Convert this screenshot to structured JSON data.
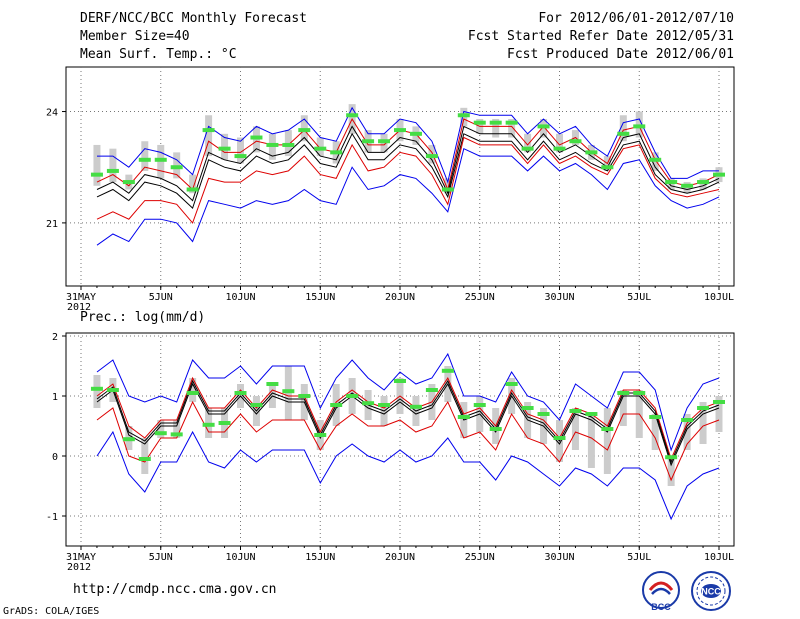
{
  "header": {
    "title": "DERF/NCC/BCC Monthly Forecast",
    "member_size": "Member Size=40",
    "variable": "Mean Surf. Temp.: °C",
    "period": "For 2012/06/01-2012/07/10",
    "start_date": "Fcst Started Refer Date 2012/05/31",
    "produced_date": "Fcst Produced Date 2012/06/01"
  },
  "footer": {
    "url": "http://cmdp.ncc.cma.gov.cn",
    "grads": "GrADS: COLA/IGES",
    "logo_bcc": "BCC",
    "logo_ncc": "NCC"
  },
  "x_axis": {
    "tick_labels": [
      "31MAY",
      "5JUN",
      "10JUN",
      "15JUN",
      "20JUN",
      "25JUN",
      "30JUN",
      "5JUL",
      "10JUL"
    ],
    "tick_days": [
      0,
      5,
      10,
      15,
      20,
      25,
      30,
      35,
      40
    ],
    "year_label": "2012"
  },
  "colors": {
    "envelope": "#0000ee",
    "spread": "#dd0000",
    "mean": "#000000",
    "bar": "#cccccc",
    "marker": "#44dd44"
  },
  "chart_data": [
    {
      "type": "line",
      "title": "Mean Surf. Temp.: °C",
      "ylim": [
        19.3,
        25.2
      ],
      "yticks": [
        21,
        24
      ],
      "x": [
        1,
        2,
        3,
        4,
        5,
        6,
        7,
        8,
        9,
        10,
        11,
        12,
        13,
        14,
        15,
        16,
        17,
        18,
        19,
        20,
        21,
        22,
        23,
        24,
        25,
        26,
        27,
        28,
        29,
        30,
        31,
        32,
        33,
        34,
        35,
        36,
        37,
        38,
        39,
        40
      ],
      "series": [
        {
          "name": "max",
          "values": [
            22.8,
            22.8,
            22.5,
            23.0,
            22.9,
            22.7,
            22.3,
            23.6,
            23.3,
            23.2,
            23.6,
            23.4,
            23.5,
            23.8,
            23.3,
            23.2,
            24.1,
            23.4,
            23.4,
            23.8,
            23.7,
            23.2,
            22.1,
            24.0,
            23.9,
            23.9,
            23.9,
            23.4,
            23.8,
            23.4,
            23.6,
            23.1,
            22.8,
            23.7,
            23.8,
            22.9,
            22.2,
            22.2,
            22.4,
            22.4
          ]
        },
        {
          "name": "upper",
          "values": [
            22.1,
            22.3,
            22.0,
            22.5,
            22.4,
            22.3,
            21.9,
            23.2,
            22.9,
            22.9,
            23.2,
            23.1,
            23.1,
            23.5,
            23.0,
            22.9,
            23.8,
            23.1,
            23.1,
            23.5,
            23.4,
            22.9,
            21.9,
            23.8,
            23.6,
            23.6,
            23.6,
            23.1,
            23.6,
            23.1,
            23.3,
            22.9,
            22.6,
            23.5,
            23.6,
            22.7,
            22.1,
            22.0,
            22.1,
            22.3
          ]
        },
        {
          "name": "mean",
          "values": [
            21.9,
            22.1,
            21.8,
            22.3,
            22.2,
            22.0,
            21.6,
            22.9,
            22.7,
            22.6,
            23.0,
            22.8,
            22.9,
            23.3,
            22.8,
            22.7,
            23.6,
            22.9,
            22.9,
            23.3,
            23.2,
            22.7,
            21.8,
            23.6,
            23.4,
            23.4,
            23.4,
            22.9,
            23.4,
            22.9,
            23.1,
            22.8,
            22.5,
            23.3,
            23.4,
            22.5,
            22.0,
            21.9,
            22.0,
            22.2
          ]
        },
        {
          "name": "lower",
          "values": [
            21.7,
            21.9,
            21.6,
            22.1,
            22.0,
            21.8,
            21.4,
            22.7,
            22.5,
            22.4,
            22.8,
            22.6,
            22.7,
            23.1,
            22.6,
            22.5,
            23.4,
            22.7,
            22.7,
            23.1,
            23.0,
            22.5,
            21.7,
            23.4,
            23.2,
            23.2,
            23.2,
            22.7,
            23.2,
            22.7,
            22.9,
            22.6,
            22.4,
            23.1,
            23.2,
            22.3,
            21.9,
            21.8,
            21.9,
            22.1
          ]
        },
        {
          "name": "low_red",
          "values": [
            21.1,
            21.3,
            21.1,
            21.6,
            21.6,
            21.5,
            21.0,
            22.2,
            22.1,
            22.1,
            22.4,
            22.3,
            22.4,
            22.8,
            22.3,
            22.2,
            23.1,
            22.4,
            22.5,
            22.9,
            22.8,
            22.3,
            21.5,
            23.3,
            23.1,
            23.1,
            23.1,
            22.6,
            23.1,
            22.6,
            22.8,
            22.5,
            22.3,
            23.0,
            23.1,
            22.2,
            21.8,
            21.7,
            21.8,
            21.9
          ]
        },
        {
          "name": "min",
          "values": [
            20.4,
            20.7,
            20.5,
            21.1,
            21.1,
            21.0,
            20.5,
            21.6,
            21.5,
            21.4,
            21.6,
            21.5,
            21.6,
            21.9,
            21.6,
            21.5,
            22.5,
            21.9,
            22.0,
            22.3,
            22.2,
            21.8,
            21.3,
            23.0,
            22.8,
            22.8,
            22.8,
            22.4,
            22.8,
            22.4,
            22.6,
            22.3,
            21.9,
            22.6,
            22.7,
            22.0,
            21.6,
            21.4,
            21.5,
            21.7
          ]
        }
      ],
      "boxes": [
        {
          "day": 1,
          "lo": 22.0,
          "hi": 23.1
        },
        {
          "day": 2,
          "lo": 22.1,
          "hi": 23.0
        },
        {
          "day": 3,
          "lo": 21.9,
          "hi": 22.3
        },
        {
          "day": 4,
          "lo": 22.4,
          "hi": 23.2
        },
        {
          "day": 5,
          "lo": 22.2,
          "hi": 23.1
        },
        {
          "day": 6,
          "lo": 22.2,
          "hi": 22.9
        },
        {
          "day": 7,
          "lo": 21.8,
          "hi": 22.3
        },
        {
          "day": 8,
          "lo": 22.8,
          "hi": 23.9
        },
        {
          "day": 9,
          "lo": 22.7,
          "hi": 23.4
        },
        {
          "day": 10,
          "lo": 22.6,
          "hi": 23.3
        },
        {
          "day": 11,
          "lo": 22.9,
          "hi": 23.6
        },
        {
          "day": 12,
          "lo": 22.7,
          "hi": 23.4
        },
        {
          "day": 13,
          "lo": 22.8,
          "hi": 23.5
        },
        {
          "day": 14,
          "lo": 23.2,
          "hi": 23.9
        },
        {
          "day": 15,
          "lo": 22.8,
          "hi": 23.3
        },
        {
          "day": 16,
          "lo": 22.6,
          "hi": 23.2
        },
        {
          "day": 17,
          "lo": 23.4,
          "hi": 24.2
        },
        {
          "day": 18,
          "lo": 22.9,
          "hi": 23.5
        },
        {
          "day": 19,
          "lo": 22.9,
          "hi": 23.4
        },
        {
          "day": 20,
          "lo": 23.2,
          "hi": 23.8
        },
        {
          "day": 21,
          "lo": 23.1,
          "hi": 23.6
        },
        {
          "day": 22,
          "lo": 22.6,
          "hi": 23.1
        },
        {
          "day": 23,
          "lo": 21.8,
          "hi": 22.2
        },
        {
          "day": 24,
          "lo": 23.6,
          "hi": 24.1
        },
        {
          "day": 25,
          "lo": 23.4,
          "hi": 23.8
        },
        {
          "day": 26,
          "lo": 23.3,
          "hi": 23.8
        },
        {
          "day": 27,
          "lo": 23.3,
          "hi": 23.8
        },
        {
          "day": 28,
          "lo": 22.9,
          "hi": 23.4
        },
        {
          "day": 29,
          "lo": 23.3,
          "hi": 23.8
        },
        {
          "day": 30,
          "lo": 22.9,
          "hi": 23.4
        },
        {
          "day": 31,
          "lo": 23.1,
          "hi": 23.5
        },
        {
          "day": 32,
          "lo": 22.7,
          "hi": 23.1
        },
        {
          "day": 33,
          "lo": 22.4,
          "hi": 22.8
        },
        {
          "day": 34,
          "lo": 23.2,
          "hi": 23.9
        },
        {
          "day": 35,
          "lo": 23.3,
          "hi": 24.0
        },
        {
          "day": 36,
          "lo": 22.4,
          "hi": 22.9
        },
        {
          "day": 37,
          "lo": 21.9,
          "hi": 22.2
        },
        {
          "day": 38,
          "lo": 21.8,
          "hi": 22.1
        },
        {
          "day": 39,
          "lo": 21.9,
          "hi": 22.2
        },
        {
          "day": 40,
          "lo": 22.1,
          "hi": 22.5
        }
      ],
      "observed": [
        22.3,
        22.4,
        22.1,
        22.7,
        22.7,
        22.5,
        21.9,
        23.5,
        23.0,
        22.8,
        23.3,
        23.1,
        23.1,
        23.5,
        23.0,
        22.9,
        23.9,
        23.2,
        23.2,
        23.5,
        23.4,
        22.8,
        21.9,
        23.9,
        23.7,
        23.7,
        23.7,
        23.0,
        23.6,
        23.0,
        23.2,
        22.9,
        22.5,
        23.4,
        23.6,
        22.7,
        22.1,
        22.0,
        22.1,
        22.3
      ]
    },
    {
      "type": "line",
      "title": "Prec.: log(mm/d)",
      "ylim": [
        -1.5,
        2.05
      ],
      "yticks": [
        -1,
        0,
        1,
        2
      ],
      "x": [
        1,
        2,
        3,
        4,
        5,
        6,
        7,
        8,
        9,
        10,
        11,
        12,
        13,
        14,
        15,
        16,
        17,
        18,
        19,
        20,
        21,
        22,
        23,
        24,
        25,
        26,
        27,
        28,
        29,
        30,
        31,
        32,
        33,
        34,
        35,
        36,
        37,
        38,
        39,
        40
      ],
      "series": [
        {
          "name": "max",
          "values": [
            1.4,
            1.6,
            1.0,
            0.9,
            1.0,
            0.9,
            1.6,
            1.3,
            1.3,
            1.5,
            1.2,
            1.5,
            1.5,
            1.5,
            0.8,
            1.3,
            1.6,
            1.3,
            1.1,
            1.4,
            1.2,
            1.3,
            1.7,
            1.0,
            1.0,
            0.9,
            1.4,
            1.0,
            0.9,
            0.6,
            1.2,
            1.0,
            0.8,
            1.4,
            1.4,
            1.1,
            0.1,
            0.8,
            1.2,
            1.3
          ]
        },
        {
          "name": "upper",
          "values": [
            1.0,
            1.2,
            0.5,
            0.3,
            0.6,
            0.6,
            1.3,
            0.8,
            0.8,
            1.1,
            0.8,
            1.1,
            1.0,
            1.0,
            0.4,
            0.9,
            1.1,
            0.9,
            0.8,
            1.0,
            0.8,
            0.9,
            1.3,
            0.7,
            0.8,
            0.5,
            1.1,
            0.7,
            0.6,
            0.3,
            0.8,
            0.7,
            0.5,
            1.1,
            1.1,
            0.8,
            -0.05,
            0.55,
            0.8,
            0.9
          ]
        },
        {
          "name": "mean",
          "values": [
            0.95,
            1.15,
            0.4,
            0.25,
            0.55,
            0.55,
            1.25,
            0.75,
            0.75,
            1.05,
            0.75,
            1.05,
            0.95,
            0.95,
            0.35,
            0.85,
            1.05,
            0.85,
            0.75,
            0.95,
            0.75,
            0.85,
            1.25,
            0.65,
            0.75,
            0.45,
            1.05,
            0.65,
            0.55,
            0.25,
            0.75,
            0.65,
            0.45,
            1.05,
            1.05,
            0.75,
            -0.1,
            0.5,
            0.75,
            0.85
          ]
        },
        {
          "name": "lower",
          "values": [
            0.9,
            1.1,
            0.35,
            0.2,
            0.5,
            0.5,
            1.2,
            0.7,
            0.7,
            1.0,
            0.7,
            1.0,
            0.9,
            0.9,
            0.3,
            0.8,
            1.0,
            0.8,
            0.7,
            0.9,
            0.7,
            0.8,
            1.2,
            0.6,
            0.7,
            0.4,
            1.0,
            0.6,
            0.5,
            0.2,
            0.7,
            0.6,
            0.4,
            1.0,
            1.0,
            0.7,
            -0.15,
            0.45,
            0.7,
            0.8
          ]
        },
        {
          "name": "low_red",
          "values": [
            0.6,
            0.8,
            0.0,
            -0.1,
            0.3,
            0.3,
            0.9,
            0.4,
            0.4,
            0.7,
            0.4,
            0.6,
            0.6,
            0.6,
            0.1,
            0.5,
            0.7,
            0.5,
            0.5,
            0.6,
            0.4,
            0.5,
            0.9,
            0.3,
            0.4,
            0.1,
            0.7,
            0.3,
            0.2,
            -0.1,
            0.4,
            0.3,
            0.1,
            0.7,
            0.7,
            0.3,
            -0.4,
            0.2,
            0.5,
            0.6
          ]
        },
        {
          "name": "min",
          "values": [
            0.0,
            0.4,
            -0.3,
            -0.6,
            -0.1,
            -0.1,
            0.4,
            -0.1,
            -0.2,
            0.1,
            -0.1,
            0.1,
            0.1,
            0.1,
            -0.45,
            0.0,
            0.2,
            0.0,
            -0.1,
            0.1,
            -0.1,
            0.0,
            0.3,
            -0.1,
            -0.1,
            -0.4,
            0.0,
            -0.1,
            -0.3,
            -0.5,
            -0.2,
            -0.3,
            -0.5,
            -0.2,
            -0.2,
            -0.4,
            -1.05,
            -0.5,
            -0.3,
            -0.2
          ]
        }
      ],
      "boxes": [
        {
          "day": 1,
          "lo": 0.8,
          "hi": 1.35
        },
        {
          "day": 2,
          "lo": 0.9,
          "hi": 1.3
        },
        {
          "day": 3,
          "lo": 0.1,
          "hi": 0.5
        },
        {
          "day": 4,
          "lo": -0.3,
          "hi": 0.3
        },
        {
          "day": 5,
          "lo": 0.3,
          "hi": 0.6
        },
        {
          "day": 6,
          "lo": 0.3,
          "hi": 0.6
        },
        {
          "day": 7,
          "lo": 0.9,
          "hi": 1.3
        },
        {
          "day": 8,
          "lo": 0.3,
          "hi": 0.8
        },
        {
          "day": 9,
          "lo": 0.3,
          "hi": 0.8
        },
        {
          "day": 10,
          "lo": 0.8,
          "hi": 1.2
        },
        {
          "day": 11,
          "lo": 0.5,
          "hi": 1.0
        },
        {
          "day": 12,
          "lo": 0.8,
          "hi": 1.2
        },
        {
          "day": 13,
          "lo": 0.6,
          "hi": 1.5
        },
        {
          "day": 14,
          "lo": 0.6,
          "hi": 1.2
        },
        {
          "day": 15,
          "lo": 0.1,
          "hi": 0.6
        },
        {
          "day": 16,
          "lo": 0.5,
          "hi": 1.2
        },
        {
          "day": 17,
          "lo": 0.7,
          "hi": 1.3
        },
        {
          "day": 18,
          "lo": 0.6,
          "hi": 1.1
        },
        {
          "day": 19,
          "lo": 0.5,
          "hi": 1.0
        },
        {
          "day": 20,
          "lo": 0.7,
          "hi": 1.3
        },
        {
          "day": 21,
          "lo": 0.5,
          "hi": 1.0
        },
        {
          "day": 22,
          "lo": 0.6,
          "hi": 1.2
        },
        {
          "day": 23,
          "lo": 0.9,
          "hi": 1.5
        },
        {
          "day": 24,
          "lo": 0.3,
          "hi": 0.9
        },
        {
          "day": 25,
          "lo": 0.4,
          "hi": 1.0
        },
        {
          "day": 26,
          "lo": 0.2,
          "hi": 0.8
        },
        {
          "day": 27,
          "lo": 0.7,
          "hi": 1.3
        },
        {
          "day": 28,
          "lo": 0.3,
          "hi": 0.9
        },
        {
          "day": 29,
          "lo": 0.2,
          "hi": 0.8
        },
        {
          "day": 30,
          "lo": -0.1,
          "hi": 0.6
        },
        {
          "day": 31,
          "lo": 0.1,
          "hi": 0.8
        },
        {
          "day": 32,
          "lo": -0.2,
          "hi": 0.7
        },
        {
          "day": 33,
          "lo": -0.3,
          "hi": 0.8
        },
        {
          "day": 34,
          "lo": 0.5,
          "hi": 1.1
        },
        {
          "day": 35,
          "lo": 0.3,
          "hi": 1.1
        },
        {
          "day": 36,
          "lo": 0.1,
          "hi": 0.7
        },
        {
          "day": 37,
          "lo": -0.5,
          "hi": 0.0
        },
        {
          "day": 38,
          "lo": 0.1,
          "hi": 0.7
        },
        {
          "day": 39,
          "lo": 0.2,
          "hi": 0.9
        },
        {
          "day": 40,
          "lo": 0.4,
          "hi": 1.0
        }
      ],
      "observed": [
        1.12,
        1.1,
        0.28,
        -0.05,
        0.38,
        0.36,
        1.05,
        0.52,
        0.55,
        1.05,
        0.85,
        1.2,
        1.08,
        1.0,
        0.35,
        0.85,
        1.0,
        0.88,
        0.85,
        1.25,
        0.82,
        1.1,
        1.42,
        0.65,
        0.85,
        0.45,
        1.2,
        0.8,
        0.7,
        0.3,
        0.75,
        0.7,
        0.45,
        1.05,
        1.05,
        0.65,
        -0.02,
        0.6,
        0.8,
        0.9
      ]
    }
  ]
}
